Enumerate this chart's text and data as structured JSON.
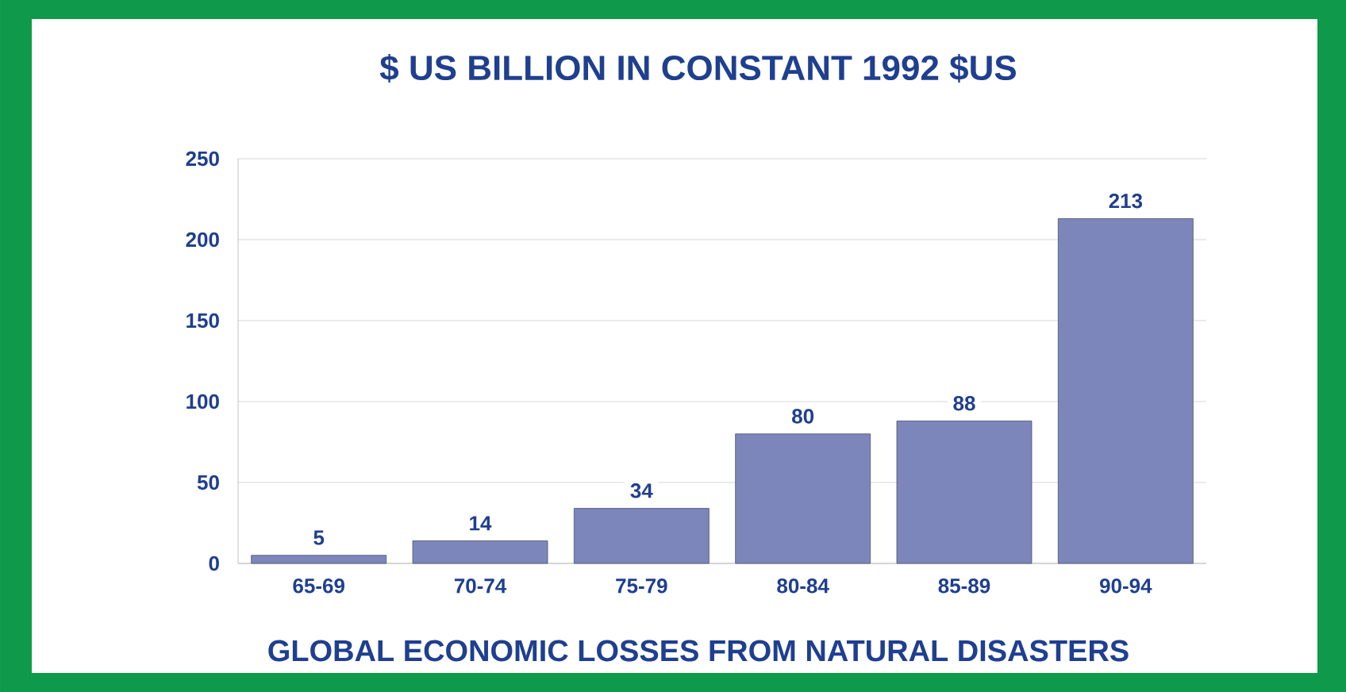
{
  "chart_data": {
    "type": "bar",
    "title": "$ US BILLION IN CONSTANT 1992 $US",
    "xlabel": "GLOBAL ECONOMIC LOSSES FROM NATURAL DISASTERS",
    "categories": [
      "65-69",
      "70-74",
      "75-79",
      "80-84",
      "85-89",
      "90-94"
    ],
    "values": [
      5,
      14,
      34,
      80,
      88,
      213
    ],
    "color": "#7d86ba",
    "ylim": [
      0,
      250
    ],
    "yticks": [
      0,
      50,
      100,
      150,
      200,
      250
    ],
    "grid": "y",
    "data_labels": true
  }
}
